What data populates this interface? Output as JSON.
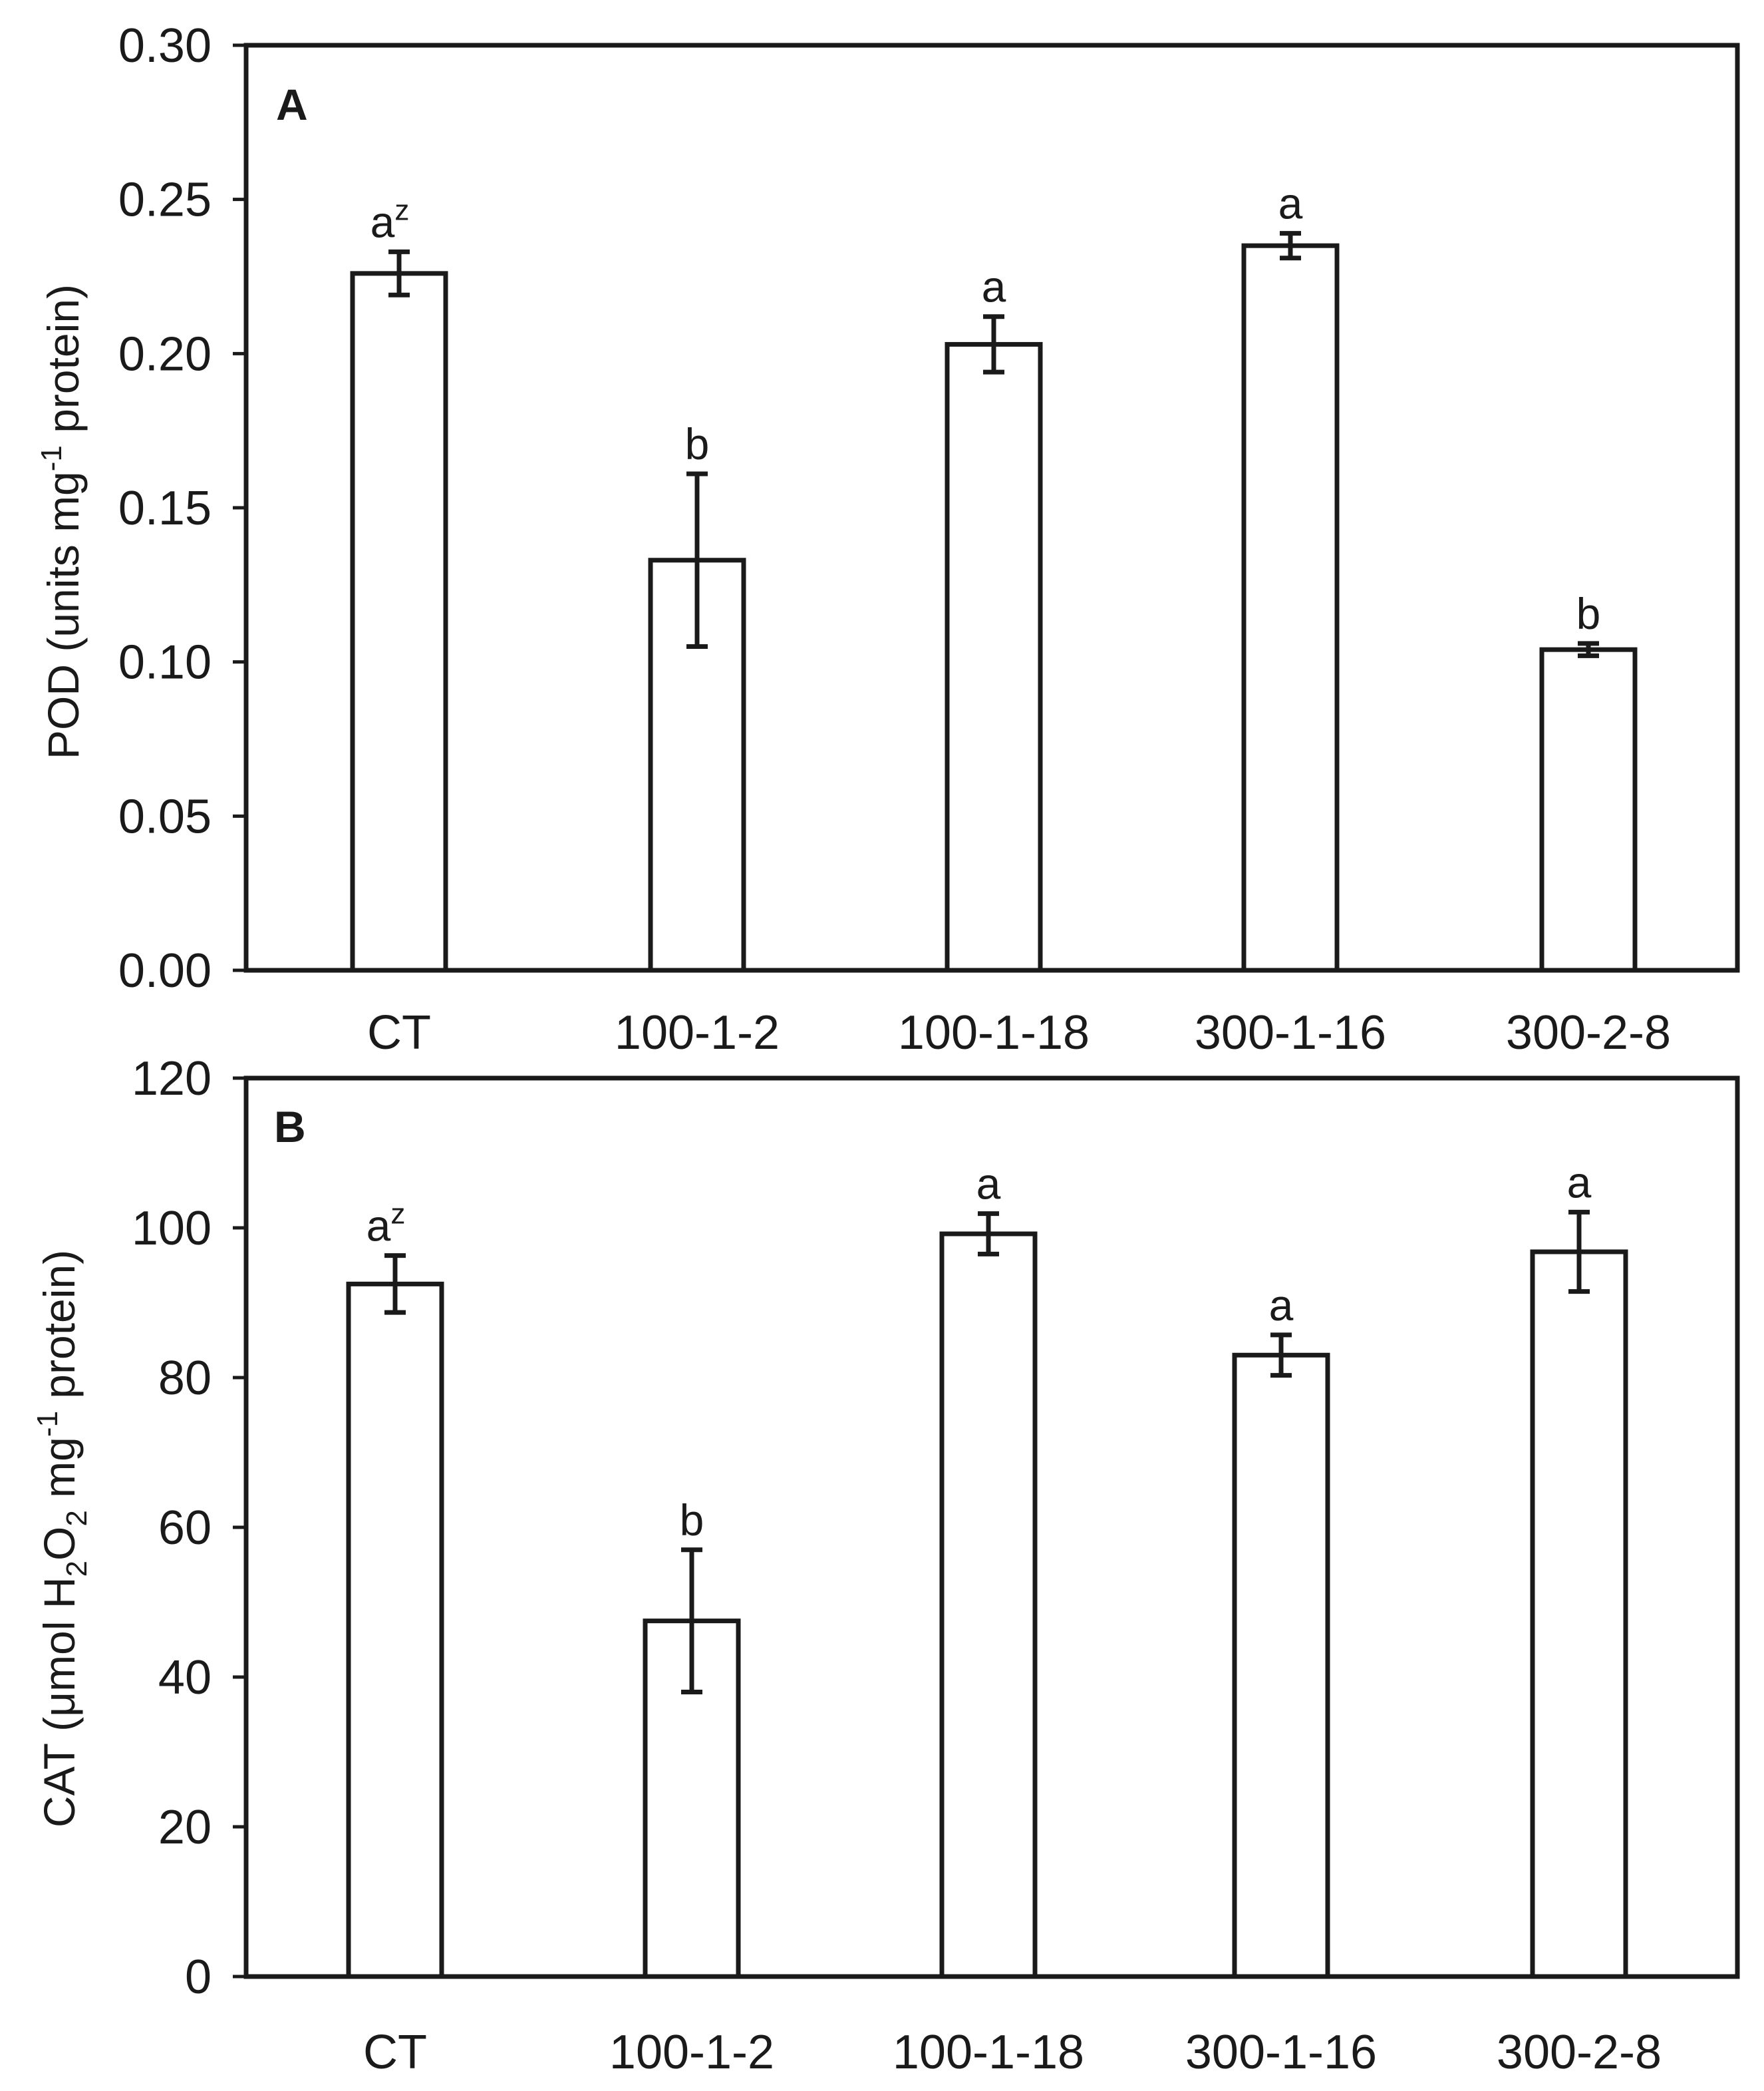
{
  "chart_data": [
    {
      "type": "bar",
      "panel": "A",
      "categories": [
        "CT",
        "100-1-2",
        "100-1-18",
        "300-1-16",
        "300-2-8"
      ],
      "values": [
        0.226,
        0.133,
        0.203,
        0.235,
        0.104
      ],
      "errors": [
        0.007,
        0.028,
        0.009,
        0.004,
        0.002
      ],
      "significance": [
        "a",
        "b",
        "a",
        "a",
        "b"
      ],
      "significance_superscript": [
        "z",
        "",
        "",
        "",
        ""
      ],
      "ylabel": {
        "main": "POD (units mg",
        "sup": "-1",
        "rest": " protein)"
      },
      "xlabel": "",
      "ylim": [
        0,
        0.3
      ],
      "yticks": [
        "0.00",
        "0.05",
        "0.10",
        "0.15",
        "0.20",
        "0.25",
        "0.30"
      ]
    },
    {
      "type": "bar",
      "panel": "B",
      "categories": [
        "CT",
        "100-1-2",
        "100-1-18",
        "300-1-16",
        "300-2-8"
      ],
      "values": [
        92.5,
        47.5,
        99.2,
        83.0,
        96.8
      ],
      "errors": [
        3.8,
        9.5,
        2.7,
        2.7,
        5.3
      ],
      "significance": [
        "a",
        "b",
        "a",
        "a",
        "a"
      ],
      "significance_superscript": [
        "z",
        "",
        "",
        "",
        ""
      ],
      "ylabel": {
        "main": "CAT (μmol H",
        "sub1": "2",
        "mid": "O",
        "sub2": "2",
        "mg": " mg",
        "sup": "-1",
        "rest": " protein)"
      },
      "xlabel": "",
      "ylim": [
        0,
        120
      ],
      "yticks": [
        "0",
        "20",
        "40",
        "60",
        "80",
        "100",
        "120"
      ]
    }
  ]
}
